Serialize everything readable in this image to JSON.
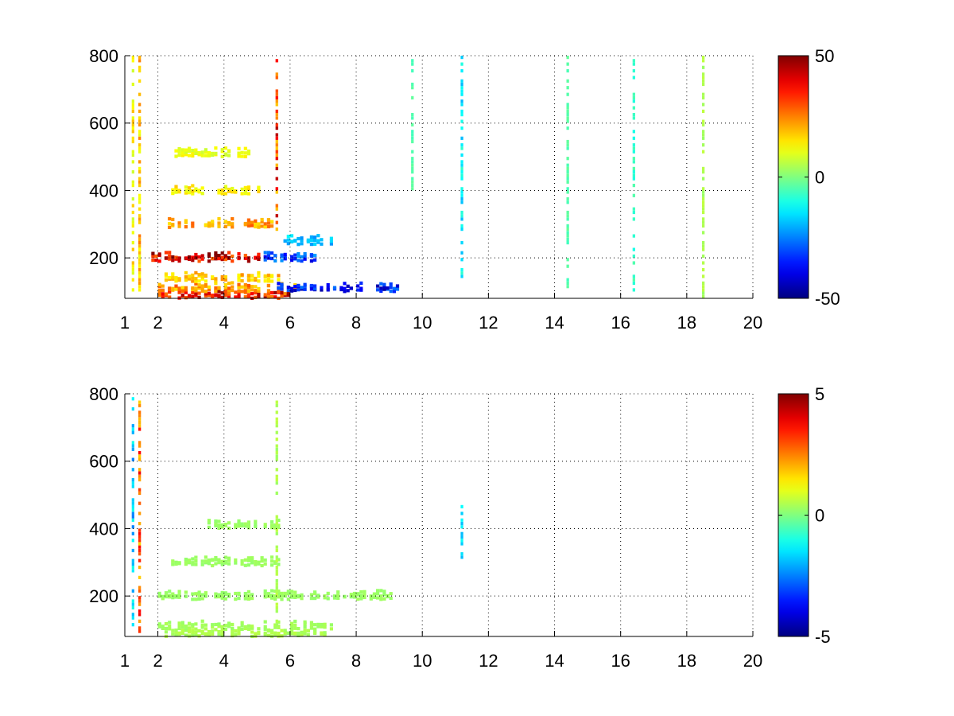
{
  "chart_data": [
    {
      "type": "heatmap",
      "panel": "top",
      "title": "",
      "xlabel": "",
      "ylabel": "",
      "xlim": [
        1,
        20
      ],
      "ylim": [
        80,
        800
      ],
      "x_ticks": [
        1,
        2,
        4,
        6,
        8,
        10,
        12,
        14,
        16,
        18,
        20
      ],
      "y_ticks": [
        200,
        400,
        600,
        800
      ],
      "grid": true,
      "colormap": "jet",
      "colorbar": {
        "min": -50,
        "max": 50,
        "ticks": [
          -50,
          0,
          50
        ]
      },
      "features": [
        {
          "kind": "band",
          "y": 90,
          "x_range": [
            1.9,
            6.0
          ],
          "value": 40
        },
        {
          "kind": "band",
          "y": 110,
          "x_range": [
            2.0,
            6.2
          ],
          "value": 25
        },
        {
          "kind": "band",
          "y": 140,
          "x_range": [
            2.2,
            5.6
          ],
          "value": 20
        },
        {
          "kind": "band",
          "y": 200,
          "x_range": [
            1.8,
            5.0
          ],
          "value": 45
        },
        {
          "kind": "band",
          "y": 300,
          "x_range": [
            2.3,
            5.5
          ],
          "value": 25
        },
        {
          "kind": "band",
          "y": 400,
          "x_range": [
            2.4,
            5.0
          ],
          "value": 15
        },
        {
          "kind": "band",
          "y": 510,
          "x_range": [
            2.5,
            4.7
          ],
          "value": 12
        },
        {
          "kind": "band",
          "y": 200,
          "x_range": [
            5.0,
            7.0
          ],
          "value": -35
        },
        {
          "kind": "band",
          "y": 110,
          "x_range": [
            5.6,
            9.3
          ],
          "value": -40
        },
        {
          "kind": "band",
          "y": 250,
          "x_range": [
            5.7,
            7.2
          ],
          "value": -20
        },
        {
          "kind": "column",
          "x": 1.25,
          "y_range": [
            80,
            800
          ],
          "value": 15
        },
        {
          "kind": "column",
          "x": 1.45,
          "y_range": [
            80,
            800
          ],
          "value": 20
        },
        {
          "kind": "column",
          "x": 5.6,
          "y_range": [
            280,
            800
          ],
          "value": 35
        },
        {
          "kind": "column",
          "x": 9.7,
          "y_range": [
            400,
            800
          ],
          "value": -5
        },
        {
          "kind": "column",
          "x": 11.2,
          "y_range": [
            80,
            800
          ],
          "value": -15
        },
        {
          "kind": "column",
          "x": 14.4,
          "y_range": [
            80,
            800
          ],
          "value": -5
        },
        {
          "kind": "column",
          "x": 16.4,
          "y_range": [
            80,
            800
          ],
          "value": -8
        },
        {
          "kind": "column",
          "x": 18.5,
          "y_range": [
            80,
            800
          ],
          "value": 5
        }
      ]
    },
    {
      "type": "heatmap",
      "panel": "bottom",
      "title": "",
      "xlabel": "",
      "ylabel": "",
      "xlim": [
        1,
        20
      ],
      "ylim": [
        80,
        800
      ],
      "x_ticks": [
        1,
        2,
        4,
        6,
        8,
        10,
        12,
        14,
        16,
        18,
        20
      ],
      "y_ticks": [
        200,
        400,
        600,
        800
      ],
      "grid": true,
      "colormap": "jet",
      "colorbar": {
        "min": -5,
        "max": 5,
        "ticks": [
          -5,
          0,
          5
        ]
      },
      "features": [
        {
          "kind": "band",
          "y": 90,
          "x_range": [
            2.0,
            7.0
          ],
          "value": 0.5
        },
        {
          "kind": "band",
          "y": 110,
          "x_range": [
            2.0,
            7.2
          ],
          "value": 0.4
        },
        {
          "kind": "band",
          "y": 200,
          "x_range": [
            2.0,
            9.0
          ],
          "value": 0.3
        },
        {
          "kind": "band",
          "y": 300,
          "x_range": [
            2.4,
            5.7
          ],
          "value": 0.3
        },
        {
          "kind": "band",
          "y": 410,
          "x_range": [
            3.3,
            5.6
          ],
          "value": 0.3
        },
        {
          "kind": "column",
          "x": 5.6,
          "y_range": [
            80,
            790
          ],
          "value": 0.5
        },
        {
          "kind": "column",
          "x": 11.2,
          "y_range": [
            310,
            480
          ],
          "value": -1.5
        },
        {
          "kind": "column",
          "x": 1.45,
          "y_range": [
            80,
            790
          ],
          "value": 3
        },
        {
          "kind": "column",
          "x": 1.25,
          "y_range": [
            100,
            790
          ],
          "value": -2
        }
      ]
    }
  ]
}
